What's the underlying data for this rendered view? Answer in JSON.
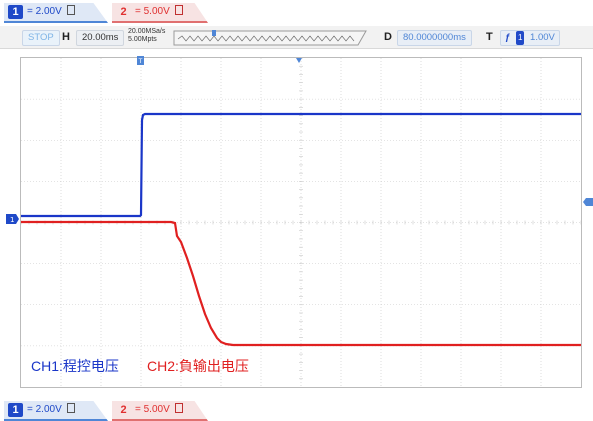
{
  "channels": [
    {
      "num": "1",
      "scale": "= 2.00V",
      "color": "#1f49c8"
    },
    {
      "num": "2",
      "scale": "= 5.00V",
      "color": "#e03030"
    }
  ],
  "status": {
    "run_state": "STOP",
    "h_label": "H",
    "h_value": "20.00ms",
    "sample_rate": "20.00MSa/s",
    "points": "5.00Mpts",
    "d_label": "D",
    "d_value": "80.0000000ms",
    "t_label": "T",
    "t_channel": "1",
    "t_level": "1.00V"
  },
  "legend": {
    "ch1": "CH1:程控电压",
    "ch2": "CH2:負输出电压"
  },
  "colors": {
    "ch1": "#1a36c8",
    "ch2": "#e02020",
    "grid": "#c8c8c8",
    "accent": "#4f86d6"
  }
}
